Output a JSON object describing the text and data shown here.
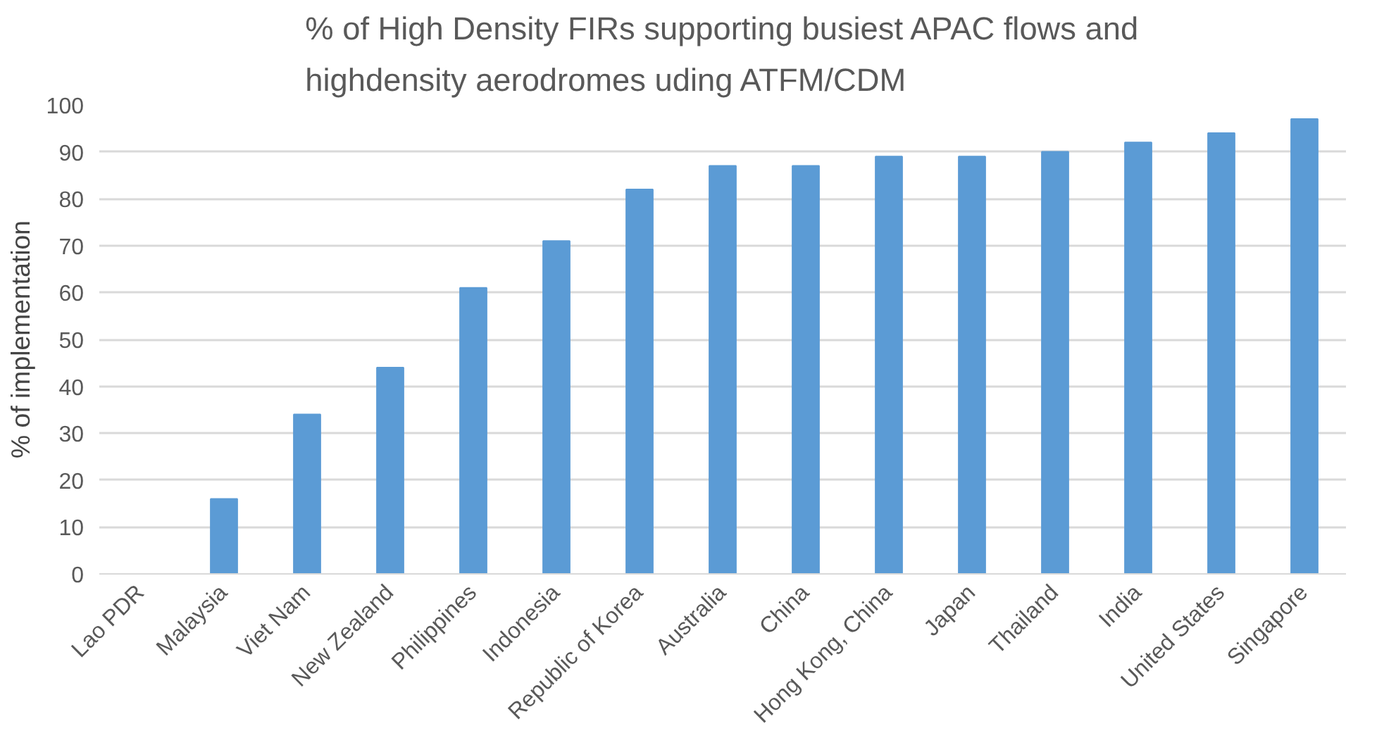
{
  "chart_data": {
    "type": "bar",
    "title": "% of High Density FIRs supporting busiest APAC flows and highdensity aerodromes uding ATFM/CDM",
    "ylabel": "% of implementation",
    "categories": [
      "Lao PDR",
      "Malaysia",
      "Viet Nam",
      "New Zealand",
      "Philippines",
      "Indonesia",
      "Republic of Korea",
      "Australia",
      "China",
      "Hong Kong, China",
      "Japan",
      "Thailand",
      "India",
      "United States",
      "Singapore"
    ],
    "values": [
      0,
      16,
      34,
      44,
      61,
      71,
      82,
      87,
      87,
      89,
      89,
      90,
      92,
      94,
      97
    ],
    "color": "#5b9bd5",
    "ylim": [
      0,
      100
    ],
    "yticks": [
      0,
      10,
      20,
      30,
      40,
      50,
      60,
      70,
      80,
      90,
      100
    ],
    "grid": "y"
  }
}
